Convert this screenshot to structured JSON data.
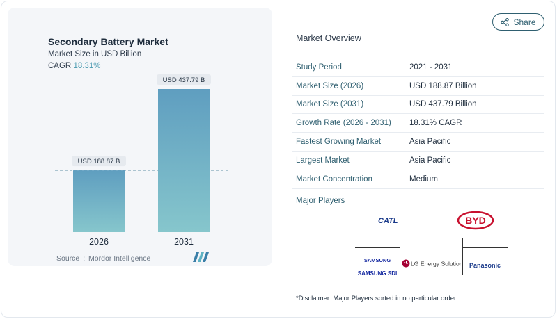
{
  "chart_card": {
    "title": "Secondary Battery Market",
    "subtitle": "Market Size in USD Billion",
    "cagr_label": "CAGR",
    "cagr_value": "18.31%",
    "source_label": "Source",
    "source_sep": ":",
    "source_value": "Mordor Intelligence"
  },
  "chart_data": {
    "type": "bar",
    "categories": [
      "2026",
      "2031"
    ],
    "values": [
      188.87,
      437.79
    ],
    "data_labels": [
      "USD 188.87 B",
      "USD 437.79 B"
    ],
    "title": "Secondary Battery Market",
    "subtitle": "Market Size in USD Billion",
    "xlabel": "",
    "ylabel": "",
    "ylim": [
      0,
      437.79
    ],
    "reference_line": 188.87,
    "bar_color_top": "#5f9ec0",
    "bar_color_bottom": "#86c6cc"
  },
  "share": {
    "label": "Share"
  },
  "overview": {
    "title": "Market Overview",
    "rows": [
      {
        "key": "Study Period",
        "value": "2021 - 2031"
      },
      {
        "key": "Market Size (2026)",
        "value": "USD 188.87 Billion"
      },
      {
        "key": "Market Size (2031)",
        "value": "USD 437.79 Billion"
      },
      {
        "key": "Growth Rate (2026 - 2031)",
        "value": "18.31% CAGR"
      },
      {
        "key": "Fastest Growing Market",
        "value": "Asia Pacific"
      },
      {
        "key": "Largest Market",
        "value": "Asia Pacific"
      },
      {
        "key": "Market Concentration",
        "value": "Medium"
      }
    ]
  },
  "players": {
    "title": "Major Players",
    "catl": "CATL",
    "byd": "BYD",
    "samsung": "SAMSUNG",
    "samsung_sdi": "SAMSUNG SDI",
    "lg": "LG Energy Solution",
    "panasonic": "Panasonic"
  },
  "disclaimer": "*Disclaimer: Major Players sorted in no particular order",
  "colors": {
    "accent": "#2f5f70",
    "cagr": "#4a9ab0",
    "catl": "#1a3a8a",
    "byd": "#c8102e",
    "lg": "#a50034",
    "samsung": "#1428a0"
  }
}
